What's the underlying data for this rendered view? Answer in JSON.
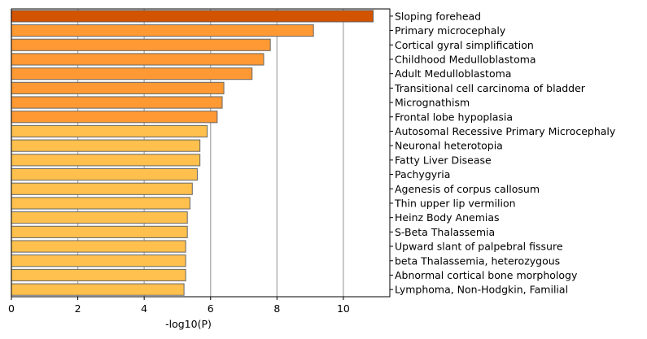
{
  "chart_data": {
    "type": "bar",
    "orientation": "horizontal",
    "categories": [
      "Sloping forehead",
      "Primary microcephaly",
      "Cortical gyral simplification",
      "Childhood Medulloblastoma",
      "Adult Medulloblastoma",
      "Transitional cell carcinoma of bladder",
      "Micrognathism",
      "Frontal lobe hypoplasia",
      "Autosomal Recessive Primary Microcephaly",
      "Neuronal heterotopia",
      "Fatty Liver Disease",
      "Pachygyria",
      "Agenesis of corpus callosum",
      "Thin upper lip vermilion",
      "Heinz Body Anemias",
      "S-Beta Thalassemia",
      "Upward slant of palpebral fissure",
      "beta Thalassemia, heterozygous",
      "Abnormal cortical bone morphology",
      "Lymphoma, Non-Hodgkin, Familial"
    ],
    "values": [
      10.9,
      9.1,
      7.8,
      7.6,
      7.25,
      6.4,
      6.35,
      6.2,
      5.9,
      5.68,
      5.68,
      5.6,
      5.45,
      5.38,
      5.3,
      5.3,
      5.25,
      5.25,
      5.25,
      5.2
    ],
    "bar_colors": [
      "#d35400",
      "#ff9933",
      "#ff9933",
      "#ff9933",
      "#ff9933",
      "#ff9933",
      "#ff9933",
      "#ff9933",
      "#ffc04d",
      "#ffc04d",
      "#ffc04d",
      "#ffc04d",
      "#ffc04d",
      "#ffc04d",
      "#ffc04d",
      "#ffc04d",
      "#ffc04d",
      "#ffc04d",
      "#ffc04d",
      "#ffc04d"
    ],
    "bar_edge_color": "#666666",
    "xlabel": "-log10(P)",
    "xlim": [
      0,
      11.4
    ],
    "xticks": [
      0,
      2,
      4,
      6,
      8,
      10
    ],
    "grid": "vertical",
    "grid_color": "#b0b0b0",
    "labels_side": "right"
  }
}
